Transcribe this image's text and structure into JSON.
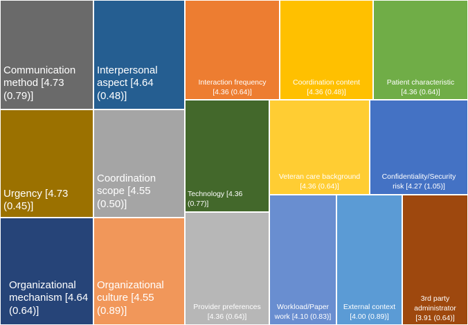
{
  "chart_data": {
    "type": "treemap",
    "unit_format": "mean (SD)",
    "items": [
      {
        "name": "Communication method",
        "line1": "Communication",
        "line2": "method [4.73",
        "line3": "(0.79)]",
        "mean": 4.73,
        "sd": 0.79,
        "color": "#6a6a6a"
      },
      {
        "name": "Interpersonal aspect",
        "line1": "Interpersonal",
        "line2": "aspect [4.64",
        "line3": "(0.48)]",
        "mean": 4.64,
        "sd": 0.48,
        "color": "#255e91"
      },
      {
        "name": "Urgency",
        "line1": "Urgency [4.73",
        "line2": "(0.45)]",
        "line3": "",
        "mean": 4.73,
        "sd": 0.45,
        "color": "#9b7100"
      },
      {
        "name": "Coordination scope",
        "line1": "Coordination",
        "line2": "scope [4.55",
        "line3": "(0.50)]",
        "mean": 4.55,
        "sd": 0.5,
        "color": "#a5a5a5"
      },
      {
        "name": "Organizational mechanism",
        "line1": "Organizational",
        "line2": "mechanism [4.64",
        "line3": "(0.64)]",
        "mean": 4.64,
        "sd": 0.64,
        "color": "#264478"
      },
      {
        "name": "Organizational culture",
        "line1": "Organizational",
        "line2": "culture [4.55",
        "line3": "(0.89)]",
        "mean": 4.55,
        "sd": 0.89,
        "color": "#f1975a"
      },
      {
        "name": "Interaction frequency",
        "line1": "Interaction frequency",
        "line2": "[4.36 (0.64)]",
        "line3": "",
        "mean": 4.36,
        "sd": 0.64,
        "color": "#ed7d31"
      },
      {
        "name": "Coordination content",
        "line1": "Coordination content",
        "line2": "[4.36 (0.48)]",
        "line3": "",
        "mean": 4.36,
        "sd": 0.48,
        "color": "#ffc000"
      },
      {
        "name": "Patient characteristic",
        "line1": "Patient characteristic",
        "line2": "[4.36 (0.64)]",
        "line3": "",
        "mean": 4.36,
        "sd": 0.64,
        "color": "#70ad47"
      },
      {
        "name": "Technology",
        "line1": "Technology [4.36",
        "line2": "(0.77)]",
        "line3": "",
        "mean": 4.36,
        "sd": 0.77,
        "color": "#43682b"
      },
      {
        "name": "Veteran care background",
        "line1": "Veteran care background",
        "line2": "[4.36 (0.64)]",
        "line3": "",
        "mean": 4.36,
        "sd": 0.64,
        "color": "#ffcd33"
      },
      {
        "name": "Confidentiality/Security risk",
        "line1": "Confidentiality/Security",
        "line2": "risk [4.27 (1.05)]",
        "line3": "",
        "mean": 4.27,
        "sd": 1.05,
        "color": "#4472c4"
      },
      {
        "name": "Provider preferences",
        "line1": "Provider preferences",
        "line2": "[4.36 (0.64)]",
        "line3": "",
        "mean": 4.36,
        "sd": 0.64,
        "color": "#b7b7b7"
      },
      {
        "name": "Workload/Paper work",
        "line1": "Workload/Paper",
        "line2": "work [4.10 (0.83)]",
        "line3": "",
        "mean": 4.1,
        "sd": 0.83,
        "color": "#698ed0"
      },
      {
        "name": "External context",
        "line1": "External context",
        "line2": "[4.00 (0.89)]",
        "line3": "",
        "mean": 4.0,
        "sd": 0.89,
        "color": "#5b9bd5"
      },
      {
        "name": "3rd party administrator",
        "line1": "3rd party",
        "line2": "administrator",
        "line3": "[3.91 (0.64)]",
        "mean": 3.91,
        "sd": 0.64,
        "color": "#9e480e"
      }
    ],
    "title": "",
    "legend": "none"
  }
}
